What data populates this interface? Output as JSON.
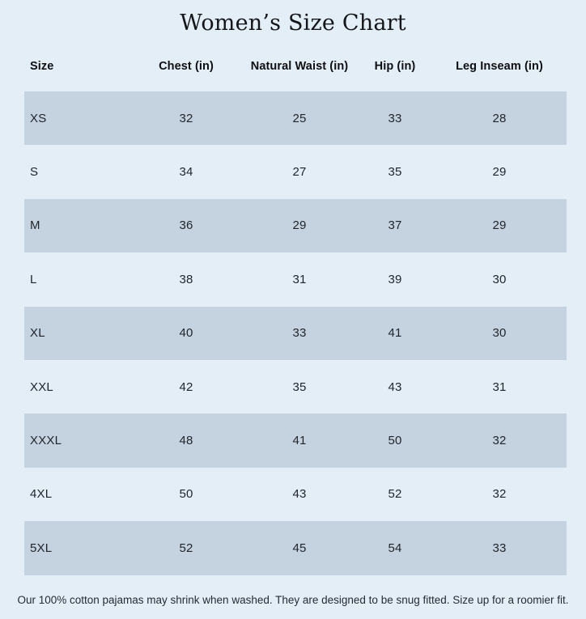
{
  "page": {
    "title": "Women’s Size Chart",
    "footnote": "Our 100% cotton pajamas may shrink when washed. They are designed to be snug fitted. Size up for a roomier fit."
  },
  "table": {
    "columns": [
      "Size",
      "Chest (in)",
      "Natural Waist (in)",
      "Hip (in)",
      "Leg Inseam (in)"
    ],
    "rows": [
      [
        "XS",
        "32",
        "25",
        "33",
        "28"
      ],
      [
        "S",
        "34",
        "27",
        "35",
        "29"
      ],
      [
        "M",
        "36",
        "29",
        "37",
        "29"
      ],
      [
        "L",
        "38",
        "31",
        "39",
        "30"
      ],
      [
        "XL",
        "40",
        "33",
        "41",
        "30"
      ],
      [
        "XXL",
        "42",
        "35",
        "43",
        "31"
      ],
      [
        "XXXL",
        "48",
        "41",
        "50",
        "32"
      ],
      [
        "4XL",
        "50",
        "43",
        "52",
        "32"
      ],
      [
        "5XL",
        "52",
        "45",
        "54",
        "33"
      ]
    ]
  },
  "colors": {
    "background": "#e3eef7",
    "row_band": "#c5d3e0",
    "title_text": "#15161a",
    "header_text": "#0d0f12",
    "cell_text": "#1f242b",
    "footnote_text": "#262b33"
  },
  "chart_data": {
    "type": "table",
    "title": "Women’s Size Chart",
    "columns": [
      "Size",
      "Chest (in)",
      "Natural Waist (in)",
      "Hip (in)",
      "Leg Inseam (in)"
    ],
    "rows": [
      {
        "size": "XS",
        "chest": 32,
        "natural_waist": 25,
        "hip": 33,
        "leg_inseam": 28
      },
      {
        "size": "S",
        "chest": 34,
        "natural_waist": 27,
        "hip": 35,
        "leg_inseam": 29
      },
      {
        "size": "M",
        "chest": 36,
        "natural_waist": 29,
        "hip": 37,
        "leg_inseam": 29
      },
      {
        "size": "L",
        "chest": 38,
        "natural_waist": 31,
        "hip": 39,
        "leg_inseam": 30
      },
      {
        "size": "XL",
        "chest": 40,
        "natural_waist": 33,
        "hip": 41,
        "leg_inseam": 30
      },
      {
        "size": "XXL",
        "chest": 42,
        "natural_waist": 35,
        "hip": 43,
        "leg_inseam": 31
      },
      {
        "size": "XXXL",
        "chest": 48,
        "natural_waist": 41,
        "hip": 50,
        "leg_inseam": 32
      },
      {
        "size": "4XL",
        "chest": 50,
        "natural_waist": 43,
        "hip": 52,
        "leg_inseam": 32
      },
      {
        "size": "5XL",
        "chest": 52,
        "natural_waist": 45,
        "hip": 54,
        "leg_inseam": 33
      }
    ],
    "layout_hints": {
      "shaded_row_indices": [
        0,
        2,
        4,
        6,
        8
      ],
      "units": "inches",
      "first_column_align": "left",
      "value_columns_align": "center"
    },
    "footnote": "Our 100% cotton pajamas may shrink when washed. They are designed to be snug fitted. Size up for a roomier fit."
  }
}
